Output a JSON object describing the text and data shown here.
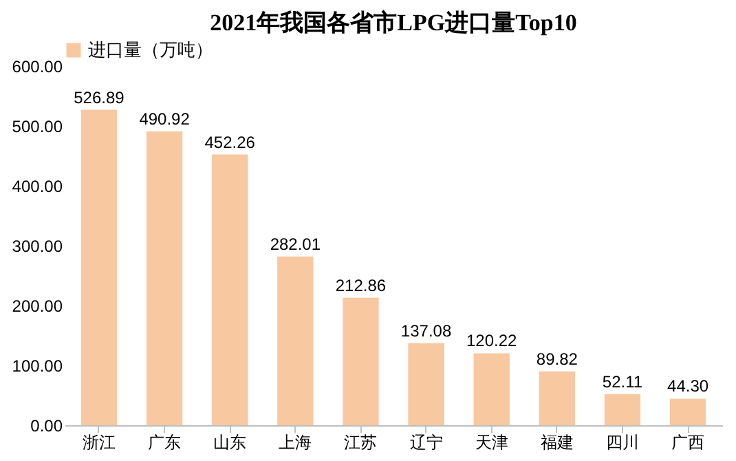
{
  "chart_data": {
    "type": "bar",
    "title": "2021年我国各省市LPG进口量Top10",
    "categories": [
      "浙江",
      "广东",
      "山东",
      "上海",
      "江苏",
      "辽宁",
      "天津",
      "福建",
      "四川",
      "广西"
    ],
    "series": [
      {
        "name": "进口量（万吨）",
        "color": "#f8c8a0",
        "values": [
          526.89,
          490.92,
          452.26,
          282.01,
          212.86,
          137.08,
          120.22,
          89.82,
          52.11,
          44.3
        ],
        "value_labels": [
          "526.89",
          "490.92",
          "452.26",
          "282.01",
          "212.86",
          "137.08",
          "120.22",
          "89.82",
          "52.11",
          "44.30"
        ]
      }
    ],
    "ylim": [
      0,
      600
    ],
    "yticks": [
      {
        "value": 0,
        "label": "0.00"
      },
      {
        "value": 100,
        "label": "100.00"
      },
      {
        "value": 200,
        "label": "200.00"
      },
      {
        "value": 300,
        "label": "300.00"
      },
      {
        "value": 400,
        "label": "400.00"
      },
      {
        "value": 500,
        "label": "500.00"
      },
      {
        "value": 600,
        "label": "600.00"
      }
    ],
    "grid": false,
    "legend": "top"
  }
}
